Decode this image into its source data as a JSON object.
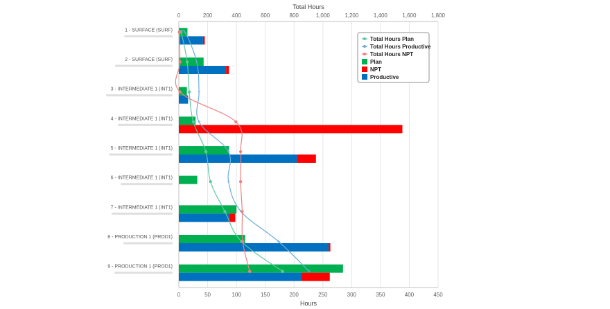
{
  "chart_data": {
    "type": "bar",
    "orientation": "horizontal",
    "categories": [
      "1 - SURFACE (SURF)",
      "2 - SURFACE (SURF)",
      "3 - INTERMEDIATE 1 (INT1)",
      "4 - INTERMEDIATE 1 (INT1)",
      "5 - INTERMEDIATE 1 (INT1)",
      "6 - INTERMEDIATE 1 (INT1)",
      "7 - INTERMEDIATE 1 (INT1)",
      "8 - PRODUCTION 1 (PROD1)",
      "9 - PRODUCTION 1 (PROD1)"
    ],
    "bottom_axis": {
      "title": "Hours",
      "range": [
        0,
        450
      ],
      "ticks": [
        "0",
        "50",
        "100",
        "150",
        "200",
        "250",
        "300",
        "350",
        "400",
        "450"
      ]
    },
    "top_axis": {
      "title": "Total Hours",
      "range": [
        0,
        1800
      ],
      "ticks": [
        "0",
        "200",
        "400",
        "600",
        "800",
        "1,000",
        "1,200",
        "1,400",
        "1,600",
        "1,800"
      ]
    },
    "bar_series": [
      {
        "name": "Plan",
        "color": "#00b050",
        "values": [
          15,
          43,
          14,
          29,
          87,
          32,
          100,
          115,
          285
        ]
      },
      {
        "name": "Productive",
        "color": "#0070c0",
        "values": [
          42,
          82,
          16,
          0,
          205,
          0,
          87,
          260,
          213
        ],
        "stack_group": "actual"
      },
      {
        "name": "NPT",
        "color": "#ff0000",
        "values": [
          3,
          5,
          0,
          388,
          33,
          0,
          11,
          3,
          49
        ],
        "stack_group": "actual"
      }
    ],
    "line_series": [
      {
        "name": "Total Hours Plan",
        "color": "#5fc8a0",
        "axis": "top",
        "values": [
          15,
          58,
          72,
          101,
          188,
          220,
          320,
          435,
          720
        ]
      },
      {
        "name": "Total Hours Productive",
        "color": "#6aaed6",
        "axis": "top",
        "values": [
          42,
          124,
          140,
          140,
          345,
          345,
          432,
          692,
          905
        ]
      },
      {
        "name": "Total Hours NPT",
        "color": "#f08080",
        "axis": "top",
        "values": [
          3,
          8,
          8,
          396,
          429,
          429,
          440,
          443,
          492
        ]
      }
    ],
    "legend": {
      "position": "top-right",
      "items": [
        {
          "label": "Total Hours Plan",
          "kind": "line",
          "color": "#5fc8a0"
        },
        {
          "label": "Total Hours Productive",
          "kind": "line",
          "color": "#6aaed6"
        },
        {
          "label": "Total Hours NPT",
          "kind": "line",
          "color": "#f08080"
        },
        {
          "label": "Plan",
          "kind": "box",
          "color": "#00b050"
        },
        {
          "label": "NPT",
          "kind": "box",
          "color": "#ff0000"
        },
        {
          "label": "Productive",
          "kind": "box",
          "color": "#0070c0"
        }
      ]
    },
    "grid": true
  }
}
